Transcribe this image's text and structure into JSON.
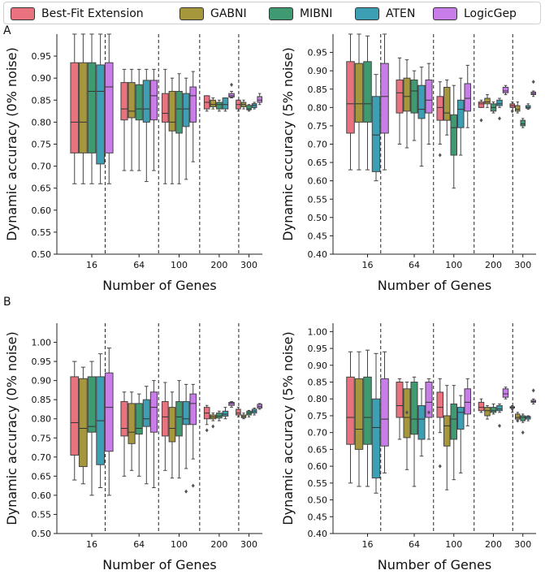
{
  "legend": [
    {
      "name": "Best-Fit Extension",
      "color": "#e8737f"
    },
    {
      "name": "GABNI",
      "color": "#a6963c"
    },
    {
      "name": "MIBNI",
      "color": "#3f9a71"
    },
    {
      "name": "ATEN",
      "color": "#3d9fb3"
    },
    {
      "name": "LogicGep",
      "color": "#c87de8"
    }
  ],
  "panel_labels": {
    "A": "A",
    "B": "B"
  },
  "chart_data": [
    {
      "id": "A-left",
      "type": "boxplot",
      "xlabel": "Number of Genes",
      "ylabel": "Dynamic accuracy (0% noise)",
      "ylim": [
        0.5,
        1.0
      ],
      "yticks": [
        "0.50",
        "0.55",
        "0.60",
        "0.65",
        "0.70",
        "0.75",
        "0.80",
        "0.85",
        "0.90",
        "0.95"
      ],
      "categories": [
        "16",
        "64",
        "100",
        "200",
        "300"
      ],
      "boxes": [
        [
          [
            0.66,
            0.73,
            0.8,
            0.935,
            1.0
          ],
          [
            0.66,
            0.73,
            0.8,
            0.935,
            1.0
          ],
          [
            0.66,
            0.73,
            0.87,
            0.935,
            1.0
          ],
          [
            0.66,
            0.705,
            0.87,
            0.93,
            1.0
          ],
          [
            0.66,
            0.73,
            0.88,
            0.935,
            1.0
          ]
        ],
        [
          [
            0.69,
            0.805,
            0.83,
            0.89,
            0.92
          ],
          [
            0.69,
            0.81,
            0.825,
            0.89,
            0.92
          ],
          [
            0.69,
            0.805,
            0.83,
            0.885,
            0.92
          ],
          [
            0.665,
            0.8,
            0.83,
            0.895,
            0.92
          ],
          [
            0.69,
            0.805,
            0.86,
            0.895,
            0.92
          ]
        ],
        [
          [
            0.66,
            0.8,
            0.82,
            0.865,
            0.92
          ],
          [
            0.66,
            0.78,
            0.8,
            0.87,
            0.9
          ],
          [
            0.66,
            0.775,
            0.83,
            0.87,
            0.91
          ],
          [
            0.67,
            0.79,
            0.83,
            0.865,
            0.9
          ],
          [
            0.71,
            0.8,
            0.86,
            0.88,
            0.915
          ]
        ],
        [
          [
            0.825,
            0.83,
            0.845,
            0.86,
            0.86
          ],
          [
            0.83,
            0.835,
            0.84,
            0.85,
            0.855
          ],
          [
            0.825,
            0.83,
            0.84,
            0.845,
            0.85
          ],
          [
            0.825,
            0.83,
            0.84,
            0.855,
            0.855
          ],
          [
            0.855,
            0.857,
            0.86,
            0.865,
            0.87
          ]
        ],
        [
          [
            0.825,
            0.83,
            0.84,
            0.85,
            0.85
          ],
          [
            0.83,
            0.835,
            0.84,
            0.845,
            0.85
          ],
          [
            0.825,
            0.828,
            0.83,
            0.838,
            0.84
          ],
          [
            0.83,
            0.833,
            0.838,
            0.842,
            0.845
          ],
          [
            0.84,
            0.845,
            0.85,
            0.858,
            0.865
          ]
        ]
      ],
      "outliers": [
        [
          3,
          4,
          0.885
        ]
      ]
    },
    {
      "id": "A-right",
      "type": "boxplot",
      "xlabel": "Number of Genes",
      "ylabel": "Dynamic accuracy (5% noise)",
      "ylim": [
        0.4,
        1.0
      ],
      "yticks": [
        "0.40",
        "0.45",
        "0.50",
        "0.55",
        "0.60",
        "0.65",
        "0.70",
        "0.75",
        "0.80",
        "0.85",
        "0.90",
        "0.95"
      ],
      "categories": [
        "16",
        "64",
        "100",
        "200",
        "300"
      ],
      "boxes": [
        [
          [
            0.63,
            0.73,
            0.81,
            0.925,
            1.0
          ],
          [
            0.63,
            0.76,
            0.81,
            0.92,
            1.0
          ],
          [
            0.63,
            0.76,
            0.81,
            0.925,
            0.995
          ],
          [
            0.6,
            0.625,
            0.725,
            0.83,
            0.89
          ],
          [
            0.63,
            0.73,
            0.83,
            0.92,
            1.0
          ]
        ],
        [
          [
            0.7,
            0.785,
            0.84,
            0.875,
            0.935
          ],
          [
            0.69,
            0.79,
            0.83,
            0.88,
            0.93
          ],
          [
            0.71,
            0.785,
            0.845,
            0.875,
            0.9
          ],
          [
            0.64,
            0.77,
            0.795,
            0.86,
            0.91
          ],
          [
            0.7,
            0.785,
            0.82,
            0.875,
            0.92
          ]
        ],
        [
          [
            0.7,
            0.765,
            0.8,
            0.83,
            0.87
          ],
          [
            0.725,
            0.765,
            0.785,
            0.855,
            0.875
          ],
          [
            0.58,
            0.67,
            0.745,
            0.78,
            0.86
          ],
          [
            0.67,
            0.745,
            0.795,
            0.82,
            0.88
          ],
          [
            0.745,
            0.79,
            0.825,
            0.865,
            0.915
          ]
        ],
        [
          [
            0.8,
            0.8,
            0.81,
            0.815,
            0.82
          ],
          [
            0.8,
            0.81,
            0.815,
            0.825,
            0.835
          ],
          [
            0.785,
            0.79,
            0.8,
            0.81,
            0.815
          ],
          [
            0.8,
            0.805,
            0.81,
            0.82,
            0.825
          ],
          [
            0.835,
            0.84,
            0.845,
            0.855,
            0.86
          ]
        ],
        [
          [
            0.8,
            0.8,
            0.805,
            0.81,
            0.815
          ],
          [
            0.785,
            0.79,
            0.795,
            0.805,
            0.815
          ],
          [
            0.745,
            0.75,
            0.755,
            0.765,
            0.77
          ],
          [
            0.795,
            0.798,
            0.8,
            0.805,
            0.81
          ],
          [
            0.83,
            0.835,
            0.838,
            0.842,
            0.845
          ]
        ]
      ],
      "outliers": [
        [
          3,
          0,
          0.765
        ],
        [
          3,
          3,
          0.77
        ],
        [
          4,
          0,
          0.79
        ],
        [
          4,
          4,
          0.87
        ],
        [
          2,
          0,
          0.67
        ]
      ]
    },
    {
      "id": "B-left",
      "type": "boxplot",
      "xlabel": "Number of Genes",
      "ylabel": "Dynamic accuracy (0% noise)",
      "ylim": [
        0.5,
        1.05
      ],
      "yticks": [
        "0.50",
        "0.55",
        "0.60",
        "0.65",
        "0.70",
        "0.75",
        "0.80",
        "0.85",
        "0.90",
        "0.95",
        "1.00"
      ],
      "categories": [
        "16",
        "64",
        "100",
        "200",
        "300"
      ],
      "boxes": [
        [
          [
            0.64,
            0.705,
            0.79,
            0.91,
            0.95
          ],
          [
            0.63,
            0.675,
            0.775,
            0.905,
            0.935
          ],
          [
            0.6,
            0.765,
            0.78,
            0.91,
            0.95
          ],
          [
            0.62,
            0.68,
            0.795,
            0.91,
            0.97
          ],
          [
            0.6,
            0.715,
            0.83,
            0.92,
            0.985
          ]
        ],
        [
          [
            0.65,
            0.755,
            0.775,
            0.845,
            0.87
          ],
          [
            0.665,
            0.735,
            0.765,
            0.84,
            0.87
          ],
          [
            0.65,
            0.76,
            0.775,
            0.84,
            0.865
          ],
          [
            0.63,
            0.78,
            0.8,
            0.85,
            0.885
          ],
          [
            0.62,
            0.765,
            0.83,
            0.87,
            0.9
          ]
        ],
        [
          [
            0.665,
            0.755,
            0.805,
            0.845,
            0.895
          ],
          [
            0.645,
            0.74,
            0.775,
            0.83,
            0.87
          ],
          [
            0.645,
            0.755,
            0.805,
            0.845,
            0.9
          ],
          [
            0.67,
            0.785,
            0.8,
            0.845,
            0.89
          ],
          [
            0.695,
            0.785,
            0.84,
            0.865,
            0.89
          ]
        ],
        [
          [
            0.785,
            0.8,
            0.815,
            0.83,
            0.835
          ],
          [
            0.795,
            0.8,
            0.805,
            0.81,
            0.815
          ],
          [
            0.795,
            0.802,
            0.807,
            0.815,
            0.82
          ],
          [
            0.8,
            0.807,
            0.812,
            0.82,
            0.83
          ],
          [
            0.83,
            0.835,
            0.84,
            0.843,
            0.845
          ]
        ],
        [
          [
            0.805,
            0.81,
            0.815,
            0.825,
            0.83
          ],
          [
            0.8,
            0.803,
            0.806,
            0.81,
            0.815
          ],
          [
            0.805,
            0.81,
            0.815,
            0.82,
            0.822
          ],
          [
            0.81,
            0.815,
            0.82,
            0.825,
            0.828
          ],
          [
            0.825,
            0.828,
            0.832,
            0.838,
            0.84
          ]
        ]
      ],
      "outliers": [
        [
          2,
          3,
          0.61
        ],
        [
          2,
          4,
          0.625
        ],
        [
          3,
          0,
          0.77
        ],
        [
          3,
          1,
          0.78
        ]
      ]
    },
    {
      "id": "B-right",
      "type": "boxplot",
      "xlabel": "Number of Genes",
      "ylabel": "Dynamic accuracy (5% noise)",
      "ylim": [
        0.4,
        1.025
      ],
      "yticks": [
        "0.40",
        "0.45",
        "0.50",
        "0.55",
        "0.60",
        "0.65",
        "0.70",
        "0.75",
        "0.80",
        "0.85",
        "0.90",
        "0.95",
        "1.00"
      ],
      "categories": [
        "16",
        "64",
        "100",
        "200",
        "300"
      ],
      "boxes": [
        [
          [
            0.55,
            0.665,
            0.745,
            0.865,
            0.94
          ],
          [
            0.54,
            0.65,
            0.71,
            0.86,
            0.94
          ],
          [
            0.54,
            0.665,
            0.745,
            0.865,
            0.945
          ],
          [
            0.52,
            0.565,
            0.715,
            0.8,
            0.935
          ],
          [
            0.58,
            0.66,
            0.74,
            0.86,
            0.94
          ]
        ],
        [
          [
            0.68,
            0.745,
            0.78,
            0.85,
            0.86
          ],
          [
            0.59,
            0.685,
            0.745,
            0.83,
            0.85
          ],
          [
            0.54,
            0.695,
            0.74,
            0.85,
            0.865
          ],
          [
            0.63,
            0.68,
            0.74,
            0.78,
            0.83
          ],
          [
            0.68,
            0.745,
            0.79,
            0.85,
            0.86
          ]
        ],
        [
          [
            0.7,
            0.745,
            0.775,
            0.82,
            0.86
          ],
          [
            0.53,
            0.66,
            0.72,
            0.75,
            0.84
          ],
          [
            0.56,
            0.68,
            0.74,
            0.785,
            0.84
          ],
          [
            0.58,
            0.71,
            0.76,
            0.775,
            0.81
          ],
          [
            0.72,
            0.755,
            0.79,
            0.83,
            0.86
          ]
        ],
        [
          [
            0.76,
            0.765,
            0.775,
            0.79,
            0.8
          ],
          [
            0.74,
            0.75,
            0.765,
            0.775,
            0.78
          ],
          [
            0.755,
            0.76,
            0.765,
            0.775,
            0.785
          ],
          [
            0.76,
            0.765,
            0.77,
            0.78,
            0.785
          ],
          [
            0.8,
            0.805,
            0.815,
            0.83,
            0.835
          ]
        ],
        [
          [
            0.76,
            0.773,
            0.775,
            0.777,
            0.78
          ],
          [
            0.735,
            0.74,
            0.745,
            0.755,
            0.76
          ],
          [
            0.73,
            0.735,
            0.745,
            0.75,
            0.755
          ],
          [
            0.735,
            0.74,
            0.745,
            0.748,
            0.75
          ],
          [
            0.785,
            0.79,
            0.792,
            0.796,
            0.8
          ]
        ]
      ],
      "outliers": [
        [
          1,
          1,
          0.76
        ],
        [
          1,
          4,
          0.76
        ],
        [
          2,
          0,
          0.6
        ],
        [
          3,
          3,
          0.72
        ],
        [
          4,
          2,
          0.7
        ],
        [
          4,
          4,
          0.825
        ],
        [
          4,
          0,
          0.77
        ],
        [
          4,
          1,
          0.735
        ]
      ]
    }
  ]
}
